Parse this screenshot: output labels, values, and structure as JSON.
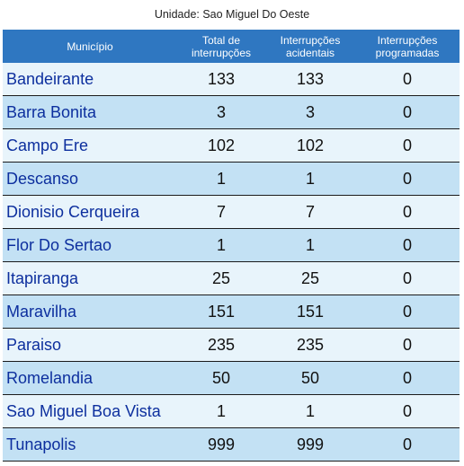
{
  "unit_title": "Unidade: Sao Miguel Do Oeste",
  "table": {
    "headers": {
      "municipio": [
        "Município"
      ],
      "total": [
        "Total de",
        "interrupções"
      ],
      "acidentais": [
        "Interrupções",
        "acidentais"
      ],
      "programadas": [
        "Interrupções",
        "programadas"
      ]
    },
    "rows": [
      {
        "municipio": "Bandeirante",
        "total": "133",
        "acidentais": "133",
        "programadas": "0"
      },
      {
        "municipio": "Barra Bonita",
        "total": "3",
        "acidentais": "3",
        "programadas": "0"
      },
      {
        "municipio": "Campo Ere",
        "total": "102",
        "acidentais": "102",
        "programadas": "0"
      },
      {
        "municipio": "Descanso",
        "total": "1",
        "acidentais": "1",
        "programadas": "0"
      },
      {
        "municipio": "Dionisio Cerqueira",
        "total": "7",
        "acidentais": "7",
        "programadas": "0"
      },
      {
        "municipio": "Flor Do Sertao",
        "total": "1",
        "acidentais": "1",
        "programadas": "0"
      },
      {
        "municipio": "Itapiranga",
        "total": "25",
        "acidentais": "25",
        "programadas": "0"
      },
      {
        "municipio": "Maravilha",
        "total": "151",
        "acidentais": "151",
        "programadas": "0"
      },
      {
        "municipio": "Paraiso",
        "total": "235",
        "acidentais": "235",
        "programadas": "0"
      },
      {
        "municipio": "Romelandia",
        "total": "50",
        "acidentais": "50",
        "programadas": "0"
      },
      {
        "municipio": "Sao Miguel Boa Vista",
        "total": "1",
        "acidentais": "1",
        "programadas": "0"
      },
      {
        "municipio": "Tunapolis",
        "total": "999",
        "acidentais": "999",
        "programadas": "0"
      }
    ]
  },
  "colors": {
    "header_bg": "#2f77c1",
    "row_light": "#e8f4fb",
    "row_dark": "#c3e1f4",
    "municipio_text": "#0d2f9e"
  }
}
